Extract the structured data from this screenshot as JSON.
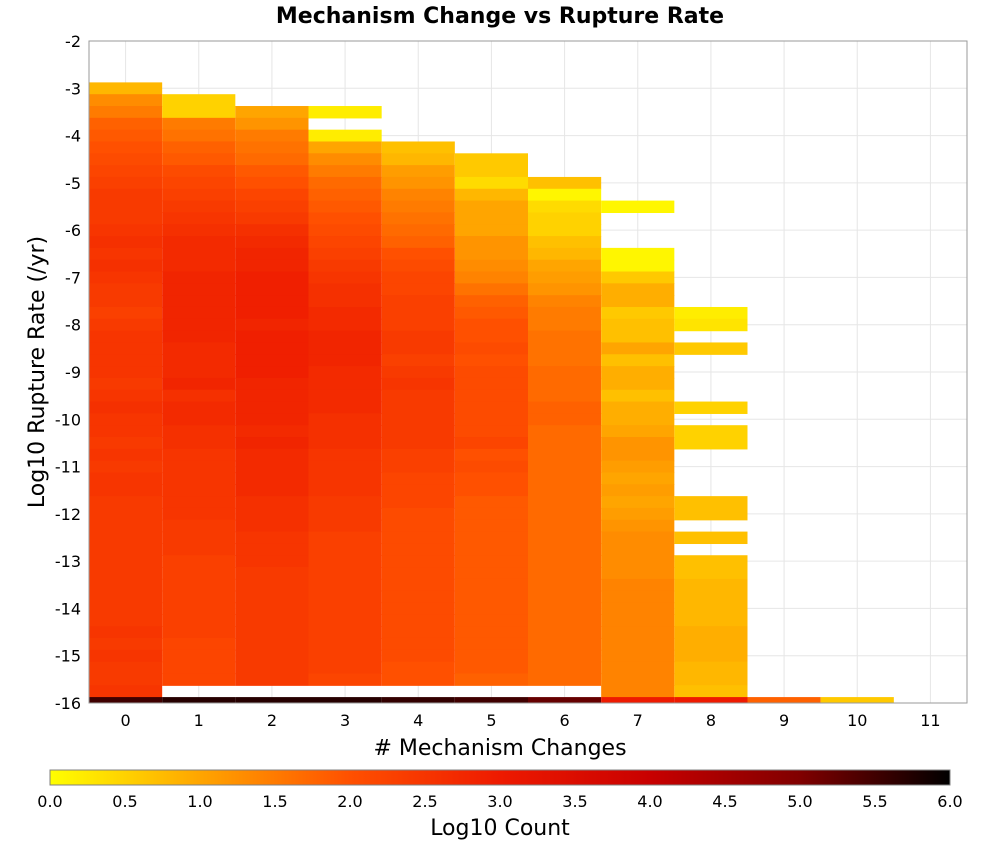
{
  "chart_data": {
    "type": "heatmap",
    "title": "Mechanism Change vs Rupture Rate",
    "xlabel": "# Mechanism Changes",
    "ylabel": "Log10 Rupture Rate (/yr)",
    "x_range": [
      -0.5,
      11.5
    ],
    "y_range": [
      -16,
      -2
    ],
    "x_ticks": [
      "0",
      "1",
      "2",
      "3",
      "4",
      "5",
      "6",
      "7",
      "8",
      "9",
      "10",
      "11"
    ],
    "y_ticks": [
      "-2",
      "-3",
      "-4",
      "-5",
      "-6",
      "-7",
      "-8",
      "-9",
      "-10",
      "-11",
      "-12",
      "-13",
      "-14",
      "-15",
      "-16"
    ],
    "y_bin_width": 0.25,
    "grid": true,
    "colorbar": {
      "label": "Log10 Count",
      "min": 0.0,
      "max": 6.0,
      "ticks": [
        "0.0",
        "0.5",
        "1.0",
        "1.5",
        "2.0",
        "2.5",
        "3.0",
        "3.5",
        "4.0",
        "4.5",
        "5.0",
        "5.5",
        "6.0"
      ],
      "colors": [
        "#ffff00",
        "#ffa500",
        "#ff5000",
        "#ee1a00",
        "#c80000",
        "#800000",
        "#000000"
      ]
    },
    "columns": [
      {
        "x": 0,
        "rupture_rate_log10": [
          -3.0,
          -15.75
        ],
        "log10_count": [
          0.8,
          1.3,
          1.5,
          1.8,
          1.9,
          2.0,
          2.1,
          2.2,
          2.3,
          2.4,
          2.4,
          2.4,
          2.5,
          2.6,
          2.5,
          2.6,
          2.5,
          2.4,
          2.4,
          2.3,
          2.4,
          2.5,
          2.5,
          2.5,
          2.5,
          2.4,
          2.5,
          2.6,
          2.5,
          2.5,
          2.4,
          2.5,
          2.4,
          2.5,
          2.5,
          2.4,
          2.4,
          2.4,
          2.4,
          2.4,
          2.4,
          2.4,
          2.4,
          2.4,
          2.4,
          2.4,
          2.5,
          2.4,
          2.5,
          2.4,
          2.4,
          2.5
        ],
        "bottom_log10_count": 5.5
      },
      {
        "x": 1,
        "rupture_rate_log10": [
          -3.25,
          -15.75
        ],
        "log10_count": [
          0.5,
          0.5,
          1.5,
          1.6,
          1.8,
          1.9,
          2.1,
          2.2,
          2.3,
          2.4,
          2.5,
          2.6,
          2.7,
          2.7,
          2.7,
          2.8,
          2.8,
          2.8,
          2.8,
          2.8,
          2.8,
          2.7,
          2.7,
          2.7,
          2.8,
          2.6,
          2.7,
          2.7,
          2.6,
          2.6,
          2.5,
          2.5,
          2.5,
          2.5,
          2.5,
          2.5,
          2.4,
          2.4,
          2.4,
          2.3,
          2.3,
          2.3,
          2.3,
          2.3,
          2.3,
          2.3,
          2.2,
          2.2,
          2.2,
          2.2
        ],
        "bottom_log10_count": 5.7
      },
      {
        "x": 2,
        "rupture_rate_log10": [
          -3.5,
          -15.75
        ],
        "log10_count": [
          1.0,
          1.2,
          1.5,
          1.6,
          1.7,
          1.9,
          2.0,
          2.2,
          2.3,
          2.4,
          2.6,
          2.7,
          2.8,
          2.8,
          2.9,
          2.9,
          2.9,
          2.9,
          2.8,
          2.9,
          2.9,
          2.9,
          2.9,
          2.8,
          2.8,
          2.8,
          2.8,
          2.7,
          2.8,
          2.7,
          2.7,
          2.7,
          2.7,
          2.6,
          2.6,
          2.6,
          2.5,
          2.5,
          2.5,
          2.4,
          2.4,
          2.4,
          2.4,
          2.4,
          2.4,
          2.4,
          2.4,
          2.4,
          2.4
        ],
        "bottom_log10_count": 5.7
      },
      {
        "x": 3,
        "rupture_rate_log10": [
          -3.5,
          -15.75
        ],
        "log10_count": [
          0.2,
          null,
          0.2,
          1.0,
          1.3,
          1.5,
          1.7,
          1.8,
          1.9,
          2.0,
          2.1,
          2.2,
          2.3,
          2.4,
          2.5,
          2.6,
          2.6,
          2.7,
          2.7,
          2.8,
          2.8,
          2.8,
          2.7,
          2.7,
          2.7,
          2.7,
          2.6,
          2.6,
          2.6,
          2.5,
          2.5,
          2.5,
          2.5,
          2.4,
          2.4,
          2.4,
          2.3,
          2.3,
          2.3,
          2.3,
          2.3,
          2.3,
          2.3,
          2.3,
          2.3,
          2.3,
          2.3,
          2.3,
          2.2
        ],
        "bottom_log10_count": 5.7
      },
      {
        "x": 4,
        "rupture_rate_log10": [
          -4.25,
          -15.75
        ],
        "log10_count": [
          0.7,
          0.8,
          1.1,
          1.2,
          1.4,
          1.5,
          1.6,
          1.7,
          1.8,
          2.0,
          2.1,
          2.2,
          2.2,
          2.3,
          2.3,
          2.3,
          2.4,
          2.4,
          2.3,
          2.4,
          2.5,
          2.4,
          2.4,
          2.4,
          2.4,
          2.4,
          2.3,
          2.3,
          2.2,
          2.2,
          2.2,
          2.1,
          2.1,
          2.1,
          2.1,
          2.1,
          2.1,
          2.1,
          2.1,
          2.1,
          2.1,
          2.1,
          2.1,
          2.1,
          2.0,
          2.0
        ],
        "bottom_log10_count": 5.6
      },
      {
        "x": 5,
        "rupture_rate_log10": [
          -4.5,
          -15.75
        ],
        "log10_count": [
          0.6,
          0.6,
          0.4,
          0.8,
          1.0,
          1.0,
          1.0,
          1.2,
          1.2,
          1.3,
          1.4,
          1.6,
          1.8,
          1.9,
          2.0,
          2.0,
          2.1,
          2.0,
          2.1,
          2.1,
          2.1,
          2.1,
          2.1,
          2.1,
          2.2,
          2.0,
          2.1,
          2.0,
          2.0,
          1.9,
          1.9,
          1.9,
          1.9,
          1.9,
          1.9,
          1.9,
          1.9,
          1.9,
          1.9,
          1.9,
          1.9,
          1.9,
          1.9,
          1.9,
          1.8
        ],
        "bottom_log10_count": 5.5
      },
      {
        "x": 6,
        "rupture_rate_log10": [
          -5.0,
          -15.75
        ],
        "log10_count": [
          0.7,
          0.1,
          0.4,
          0.5,
          0.5,
          0.7,
          0.8,
          1.0,
          1.1,
          1.2,
          1.4,
          1.5,
          1.5,
          1.6,
          1.6,
          1.6,
          1.7,
          1.7,
          1.7,
          1.8,
          1.8,
          1.7,
          1.7,
          1.7,
          1.7,
          1.7,
          1.7,
          1.7,
          1.7,
          1.7,
          1.7,
          1.7,
          1.7,
          1.7,
          1.7,
          1.7,
          1.7,
          1.7,
          1.7,
          1.7,
          1.7,
          1.7,
          1.7
        ],
        "bottom_log10_count": 5.2
      },
      {
        "x": 7,
        "rupture_rate_log10": [
          -5.5,
          -15.75
        ],
        "log10_count": [
          0.1,
          null,
          null,
          null,
          0.1,
          0.1,
          0.6,
          0.9,
          0.9,
          0.6,
          0.7,
          0.7,
          1.0,
          0.7,
          0.9,
          0.9,
          0.7,
          0.9,
          0.9,
          1.0,
          1.2,
          1.2,
          1.1,
          1.0,
          1.1,
          1.0,
          1.1,
          1.2,
          1.3,
          1.3,
          1.3,
          1.3,
          1.4,
          1.4,
          1.4,
          1.4,
          1.4,
          1.4,
          1.4,
          1.4,
          1.4,
          1.4
        ],
        "bottom_log10_count": 3.0
      },
      {
        "x": 8,
        "rupture_rate_log10": [
          -7.75,
          -15.75
        ],
        "log10_count": [
          0.2,
          0.3,
          null,
          0.6,
          null,
          null,
          null,
          null,
          0.5,
          null,
          0.5,
          0.5,
          null,
          null,
          null,
          null,
          0.7,
          0.7,
          null,
          0.7,
          null,
          0.7,
          0.7,
          0.8,
          0.8,
          0.8,
          0.8,
          0.9,
          0.9,
          0.9,
          0.8,
          0.8,
          0.7
        ],
        "bottom_log10_count": 3.0
      },
      {
        "x": 9,
        "rupture_rate_log10": [
          -15.75,
          -15.75
        ],
        "log10_count": [],
        "bottom_log10_count": 1.8
      },
      {
        "x": 10,
        "rupture_rate_log10": [
          -15.75,
          -15.75
        ],
        "log10_count": [],
        "bottom_log10_count": 0.6
      }
    ]
  }
}
